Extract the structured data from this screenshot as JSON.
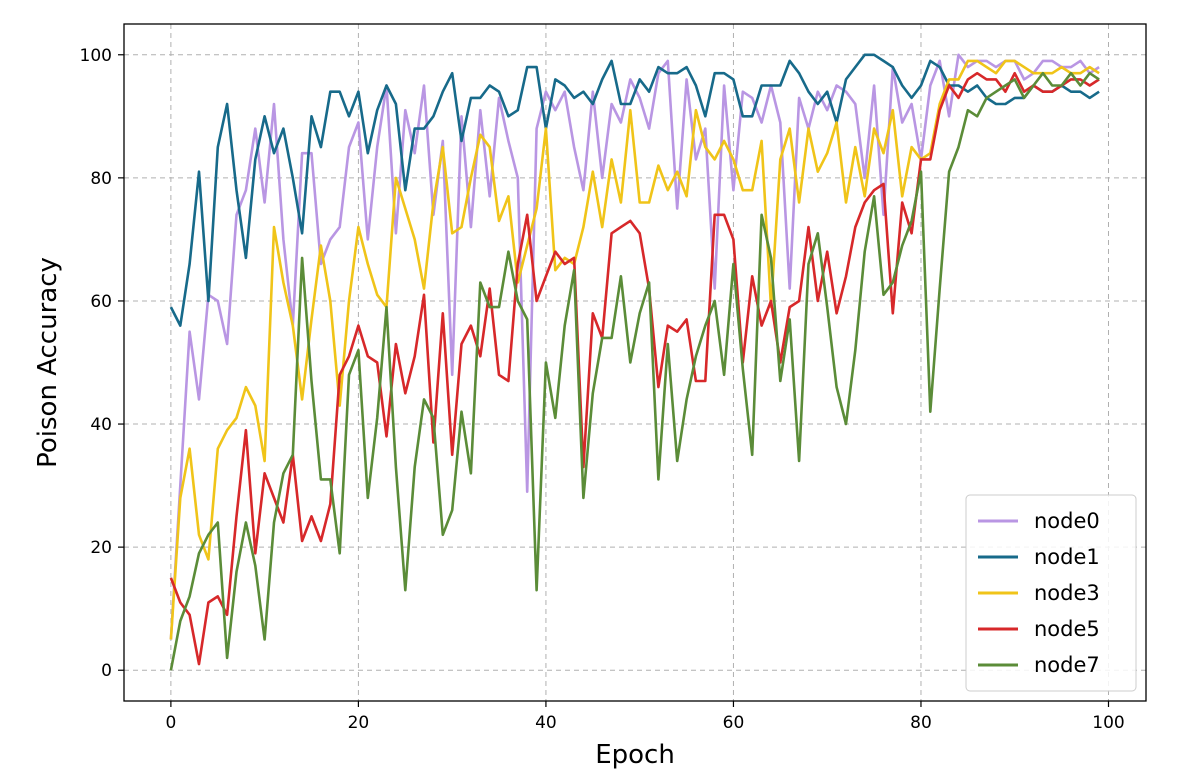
{
  "chart_data": {
    "type": "line",
    "title": "",
    "xlabel": "Epoch",
    "ylabel": "Poison Accuracy",
    "xlim": [
      -5,
      104
    ],
    "ylim": [
      -5,
      105
    ],
    "xticks": [
      0,
      20,
      40,
      60,
      80,
      100
    ],
    "yticks": [
      0,
      20,
      40,
      60,
      80,
      100
    ],
    "grid": true,
    "legend_position": "bottom-right",
    "x": [
      0,
      1,
      2,
      3,
      4,
      5,
      6,
      7,
      8,
      9,
      10,
      11,
      12,
      13,
      14,
      15,
      16,
      17,
      18,
      19,
      20,
      21,
      22,
      23,
      24,
      25,
      26,
      27,
      28,
      29,
      30,
      31,
      32,
      33,
      34,
      35,
      36,
      37,
      38,
      39,
      40,
      41,
      42,
      43,
      44,
      45,
      46,
      47,
      48,
      49,
      50,
      51,
      52,
      53,
      54,
      55,
      56,
      57,
      58,
      59,
      60,
      61,
      62,
      63,
      64,
      65,
      66,
      67,
      68,
      69,
      70,
      71,
      72,
      73,
      74,
      75,
      76,
      77,
      78,
      79,
      80,
      81,
      82,
      83,
      84,
      85,
      86,
      87,
      88,
      89,
      90,
      91,
      92,
      93,
      94,
      95,
      96,
      97,
      98,
      99
    ],
    "series": [
      {
        "name": "node0",
        "color": "#b996e3",
        "values": [
          5,
          30,
          55,
          44,
          61,
          60,
          53,
          74,
          78,
          88,
          76,
          92,
          70,
          56,
          84,
          84,
          66,
          70,
          72,
          85,
          89,
          70,
          85,
          95,
          71,
          91,
          84,
          95,
          74,
          86,
          48,
          90,
          72,
          91,
          77,
          93,
          86,
          80,
          29,
          88,
          94,
          91,
          94,
          85,
          78,
          94,
          80,
          92,
          89,
          96,
          93,
          88,
          97,
          99,
          75,
          96,
          83,
          88,
          62,
          95,
          78,
          94,
          93,
          89,
          95,
          89,
          62,
          93,
          88,
          94,
          91,
          95,
          94,
          92,
          80,
          95,
          74,
          98,
          89,
          92,
          83,
          95,
          99,
          90,
          100,
          98,
          99,
          99,
          98,
          99,
          99,
          96,
          97,
          99,
          99,
          98,
          98,
          99,
          97,
          98
        ]
      },
      {
        "name": "node1",
        "color": "#176a8a",
        "values": [
          59,
          56,
          66,
          81,
          60,
          85,
          92,
          78,
          67,
          83,
          90,
          84,
          88,
          80,
          71,
          90,
          85,
          94,
          94,
          90,
          94,
          84,
          91,
          95,
          92,
          78,
          88,
          88,
          90,
          94,
          97,
          86,
          93,
          93,
          95,
          94,
          90,
          91,
          98,
          98,
          88,
          96,
          95,
          93,
          94,
          92,
          96,
          99,
          92,
          92,
          96,
          94,
          98,
          97,
          97,
          98,
          95,
          90,
          97,
          97,
          96,
          90,
          90,
          95,
          95,
          95,
          99,
          97,
          94,
          92,
          94,
          89,
          96,
          98,
          100,
          100,
          99,
          98,
          95,
          93,
          95,
          99,
          98,
          95,
          95,
          94,
          95,
          93,
          92,
          92,
          93,
          93,
          95,
          94,
          94,
          95,
          94,
          94,
          93,
          94
        ]
      },
      {
        "name": "node3",
        "color": "#f0c419",
        "values": [
          5,
          28,
          36,
          22,
          18,
          36,
          39,
          41,
          46,
          43,
          34,
          72,
          63,
          56,
          44,
          57,
          69,
          60,
          43,
          60,
          72,
          66,
          61,
          59,
          80,
          75,
          70,
          62,
          76,
          85,
          71,
          72,
          80,
          87,
          85,
          73,
          77,
          63,
          69,
          75,
          88,
          65,
          67,
          66,
          72,
          81,
          72,
          83,
          76,
          91,
          76,
          76,
          82,
          78,
          81,
          77,
          91,
          85,
          83,
          86,
          83,
          78,
          78,
          86,
          59,
          83,
          88,
          76,
          88,
          81,
          84,
          89,
          76,
          85,
          77,
          88,
          84,
          91,
          77,
          85,
          83,
          84,
          92,
          96,
          96,
          99,
          99,
          98,
          97,
          99,
          99,
          98,
          97,
          97,
          97,
          98,
          97,
          97,
          98,
          97
        ]
      },
      {
        "name": "node5",
        "color": "#d7282a",
        "values": [
          15,
          11,
          9,
          1,
          11,
          12,
          9,
          25,
          39,
          19,
          32,
          28,
          24,
          35,
          21,
          25,
          21,
          27,
          48,
          51,
          56,
          51,
          50,
          38,
          53,
          45,
          51,
          61,
          37,
          58,
          35,
          53,
          56,
          51,
          62,
          48,
          47,
          66,
          74,
          60,
          64,
          68,
          66,
          67,
          33,
          58,
          54,
          71,
          72,
          73,
          71,
          62,
          46,
          56,
          55,
          57,
          47,
          47,
          74,
          74,
          70,
          50,
          64,
          56,
          60,
          50,
          59,
          60,
          72,
          60,
          68,
          58,
          64,
          72,
          76,
          78,
          79,
          58,
          76,
          71,
          83,
          83,
          91,
          95,
          93,
          96,
          97,
          96,
          96,
          94,
          97,
          94,
          95,
          94,
          94,
          95,
          96,
          96,
          95,
          96
        ]
      },
      {
        "name": "node7",
        "color": "#5b8c38",
        "values": [
          0,
          8,
          12,
          19,
          22,
          24,
          2,
          16,
          24,
          17,
          5,
          24,
          32,
          35,
          67,
          47,
          31,
          31,
          19,
          48,
          52,
          28,
          41,
          59,
          33,
          13,
          33,
          44,
          41,
          22,
          26,
          42,
          32,
          63,
          59,
          59,
          68,
          60,
          57,
          13,
          50,
          41,
          56,
          65,
          28,
          45,
          54,
          54,
          64,
          50,
          58,
          63,
          31,
          53,
          34,
          44,
          51,
          56,
          60,
          48,
          66,
          49,
          35,
          74,
          67,
          47,
          57,
          34,
          66,
          71,
          59,
          46,
          40,
          52,
          68,
          77,
          61,
          63,
          69,
          73,
          81,
          42,
          62,
          81,
          85,
          91,
          90,
          93,
          94,
          95,
          96,
          93,
          95,
          97,
          95,
          95,
          97,
          95,
          97,
          96
        ]
      }
    ]
  }
}
